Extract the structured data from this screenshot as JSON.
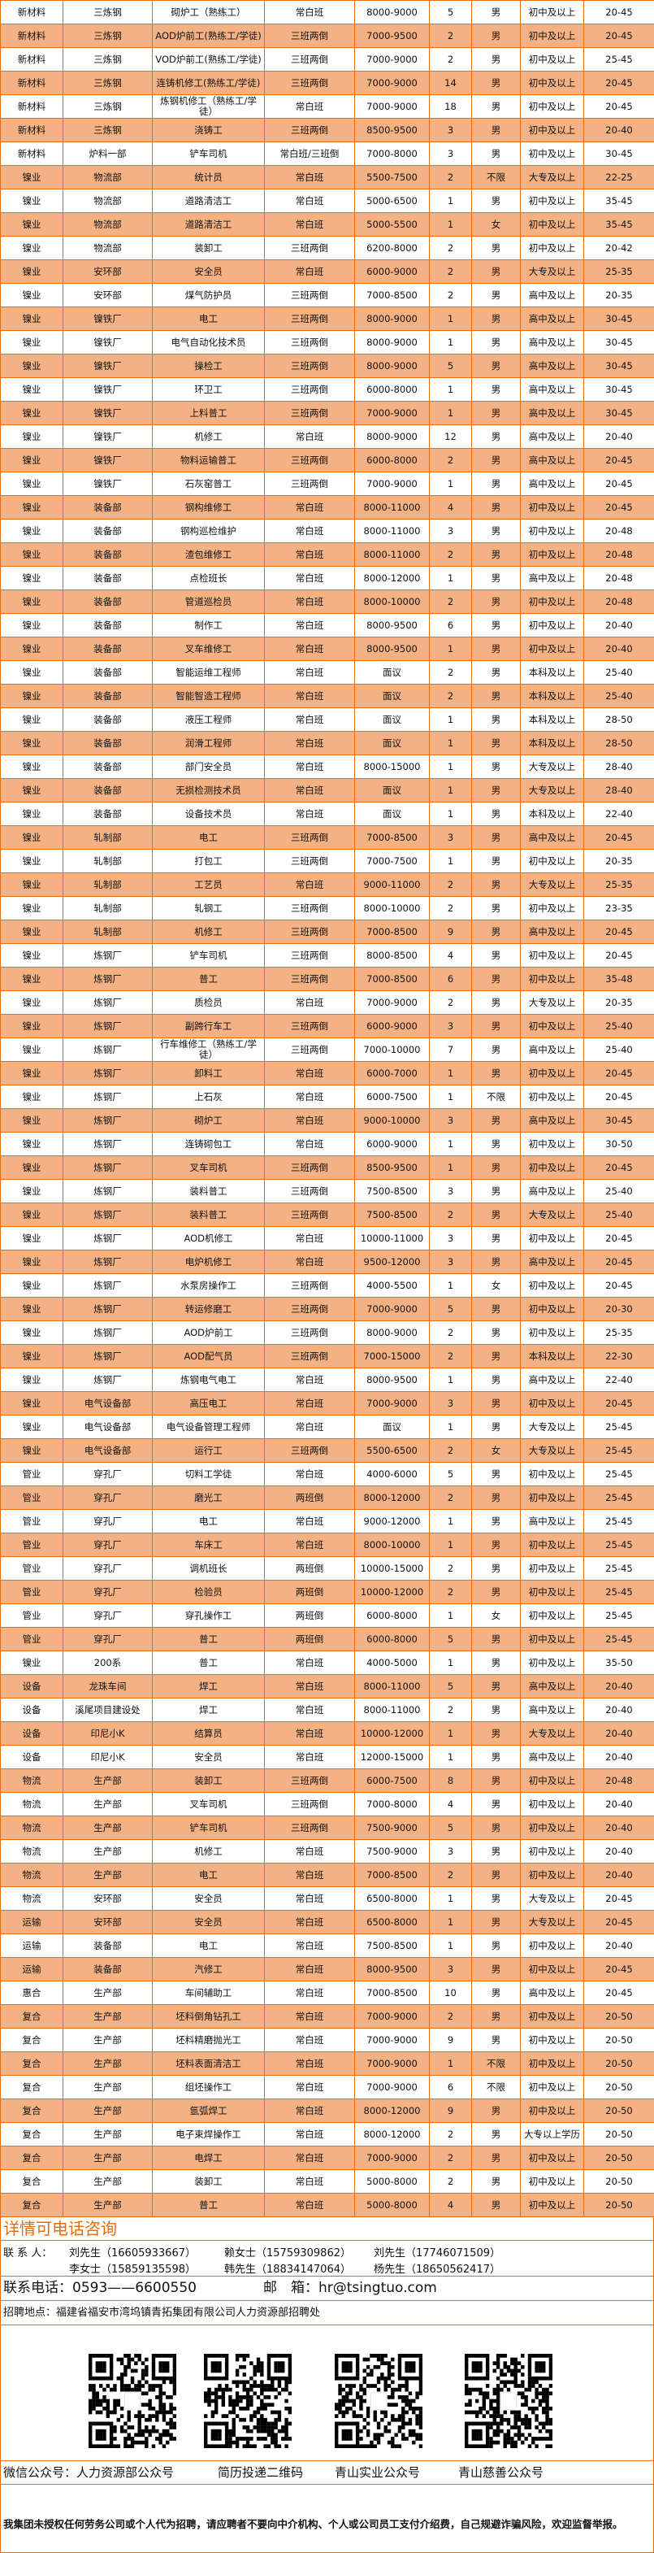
{
  "colors": {
    "stripe": "#F4B183",
    "border": "#E46C0A",
    "accent": "#E46C0A"
  },
  "rows": [
    [
      "新材料",
      "三炼钢",
      "砌炉工（熟练工）",
      "常白班",
      "8000-9000",
      "5",
      "男",
      "初中及以上",
      "20-45"
    ],
    [
      "新材料",
      "三炼钢",
      "AOD炉前工(熟练工/学徒)",
      "三班两倒",
      "7000-9500",
      "2",
      "男",
      "初中及以上",
      "20-45"
    ],
    [
      "新材料",
      "三炼钢",
      "VOD炉前工(熟练工/学徒)",
      "三班两倒",
      "7000-9000",
      "2",
      "男",
      "初中及以上",
      "25-45"
    ],
    [
      "新材料",
      "三炼钢",
      "连铸机修工(熟练工/学徒)",
      "三班两倒",
      "7000-9000",
      "14",
      "男",
      "初中及以上",
      "20-45"
    ],
    [
      "新材料",
      "三炼钢",
      "炼钢机修工（熟练工/学徒）",
      "常白班",
      "7000-9000",
      "18",
      "男",
      "初中及以上",
      "20-45"
    ],
    [
      "新材料",
      "三炼钢",
      "浇铸工",
      "三班两倒",
      "8500-9500",
      "3",
      "男",
      "初中及以上",
      "20-40"
    ],
    [
      "新材料",
      "炉料一部",
      "铲车司机",
      "常白班/三班倒",
      "7000-8000",
      "3",
      "男",
      "初中及以上",
      "30-45"
    ],
    [
      "镍业",
      "物流部",
      "统计员",
      "常白班",
      "5500-7500",
      "2",
      "不限",
      "大专及以上",
      "22-25"
    ],
    [
      "镍业",
      "物流部",
      "道路清洁工",
      "常白班",
      "5000-6500",
      "1",
      "男",
      "初中及以上",
      "35-45"
    ],
    [
      "镍业",
      "物流部",
      "道路清洁工",
      "常白班",
      "5000-5500",
      "1",
      "女",
      "初中及以上",
      "35-45"
    ],
    [
      "镍业",
      "物流部",
      "装卸工",
      "三班两倒",
      "6200-8000",
      "2",
      "男",
      "初中及以上",
      "20-42"
    ],
    [
      "镍业",
      "安环部",
      "安全员",
      "常白班",
      "6000-9000",
      "2",
      "男",
      "大专及以上",
      "25-35"
    ],
    [
      "镍业",
      "安环部",
      "煤气防护员",
      "三班两倒",
      "7000-8500",
      "2",
      "男",
      "高中及以上",
      "20-35"
    ],
    [
      "镍业",
      "镍铁厂",
      "电工",
      "三班两倒",
      "8000-9000",
      "1",
      "男",
      "高中及以上",
      "30-45"
    ],
    [
      "镍业",
      "镍铁厂",
      "电气自动化技术员",
      "三班两倒",
      "8000-9000",
      "1",
      "男",
      "高中及以上",
      "30-45"
    ],
    [
      "镍业",
      "镍铁厂",
      "操检工",
      "三班两倒",
      "8000-9000",
      "5",
      "男",
      "高中及以上",
      "30-45"
    ],
    [
      "镍业",
      "镍铁厂",
      "环卫工",
      "三班两倒",
      "6000-8000",
      "1",
      "男",
      "高中及以上",
      "30-45"
    ],
    [
      "镍业",
      "镍铁厂",
      "上料普工",
      "三班两倒",
      "7000-9000",
      "1",
      "男",
      "高中及以上",
      "30-45"
    ],
    [
      "镍业",
      "镍铁厂",
      "机修工",
      "常白班",
      "8000-9000",
      "12",
      "男",
      "高中及以上",
      "20-40"
    ],
    [
      "镍业",
      "镍铁厂",
      "物料运输普工",
      "三班两倒",
      "6000-8000",
      "2",
      "男",
      "高中及以上",
      "20-45"
    ],
    [
      "镍业",
      "镍铁厂",
      "石灰窑普工",
      "三班两倒",
      "7000-9000",
      "1",
      "男",
      "高中及以上",
      "20-45"
    ],
    [
      "镍业",
      "装备部",
      "钢构维修工",
      "常白班",
      "8000-11000",
      "4",
      "男",
      "初中及以上",
      "20-45"
    ],
    [
      "镍业",
      "装备部",
      "钢构巡检维护",
      "常白班",
      "8000-11000",
      "3",
      "男",
      "初中及以上",
      "20-48"
    ],
    [
      "镍业",
      "装备部",
      "渣包维修工",
      "常白班",
      "8000-11000",
      "2",
      "男",
      "初中及以上",
      "20-48"
    ],
    [
      "镍业",
      "装备部",
      "点检班长",
      "常白班",
      "8000-12000",
      "1",
      "男",
      "高中及以上",
      "20-48"
    ],
    [
      "镍业",
      "装备部",
      "管道巡检员",
      "常白班",
      "8000-10000",
      "2",
      "男",
      "初中及以上",
      "20-48"
    ],
    [
      "镍业",
      "装备部",
      "制作工",
      "常白班",
      "8000-9500",
      "6",
      "男",
      "初中及以上",
      "20-40"
    ],
    [
      "镍业",
      "装备部",
      "叉车维修工",
      "常白班",
      "8000-9500",
      "1",
      "男",
      "初中及以上",
      "20-40"
    ],
    [
      "镍业",
      "装备部",
      "智能运维工程师",
      "常白班",
      "面议",
      "2",
      "男",
      "本科及以上",
      "25-40"
    ],
    [
      "镍业",
      "装备部",
      "智能智造工程师",
      "常白班",
      "面议",
      "2",
      "男",
      "本科及以上",
      "25-40"
    ],
    [
      "镍业",
      "装备部",
      "液压工程师",
      "常白班",
      "面议",
      "1",
      "男",
      "本科及以上",
      "28-50"
    ],
    [
      "镍业",
      "装备部",
      "润滑工程师",
      "常白班",
      "面议",
      "1",
      "男",
      "本科及以上",
      "28-50"
    ],
    [
      "镍业",
      "装备部",
      "部门安全员",
      "常白班",
      "8000-15000",
      "1",
      "男",
      "大专及以上",
      "28-40"
    ],
    [
      "镍业",
      "装备部",
      "无损检测技术员",
      "常白班",
      "面议",
      "1",
      "男",
      "大专及以上",
      "28-40"
    ],
    [
      "镍业",
      "装备部",
      "设备技术员",
      "常白班",
      "面议",
      "1",
      "男",
      "本科及以上",
      "22-40"
    ],
    [
      "镍业",
      "轧制部",
      "电工",
      "三班两倒",
      "7000-8500",
      "3",
      "男",
      "高中及以上",
      "20-45"
    ],
    [
      "镍业",
      "轧制部",
      "打包工",
      "三班两倒",
      "7000-7500",
      "1",
      "男",
      "初中及以上",
      "20-35"
    ],
    [
      "镍业",
      "轧制部",
      "工艺员",
      "常白班",
      "9000-11000",
      "2",
      "男",
      "大专及以上",
      "25-35"
    ],
    [
      "镍业",
      "轧制部",
      "轧钢工",
      "三班两倒",
      "8000-10000",
      "2",
      "男",
      "初中及以上",
      "23-35"
    ],
    [
      "镍业",
      "轧制部",
      "机修工",
      "三班两倒",
      "7000-8500",
      "9",
      "男",
      "高中及以上",
      "20-45"
    ],
    [
      "镍业",
      "炼钢厂",
      "铲车司机",
      "三班两倒",
      "8000-8500",
      "4",
      "男",
      "初中及以上",
      "20-45"
    ],
    [
      "镍业",
      "炼钢厂",
      "普工",
      "三班两倒",
      "7000-8500",
      "6",
      "男",
      "初中及以上",
      "35-48"
    ],
    [
      "镍业",
      "炼钢厂",
      "质检员",
      "常白班",
      "7000-9000",
      "2",
      "男",
      "大专及以上",
      "20-35"
    ],
    [
      "镍业",
      "炼钢厂",
      "副跨行车工",
      "三班两倒",
      "6000-9000",
      "3",
      "男",
      "初中及以上",
      "25-40"
    ],
    [
      "镍业",
      "炼钢厂",
      "行车维修工（熟练工/学徒）",
      "三班两倒",
      "7000-10000",
      "7",
      "男",
      "高中及以上",
      "25-40"
    ],
    [
      "镍业",
      "炼钢厂",
      "卸料工",
      "常白班",
      "6000-7000",
      "1",
      "男",
      "初中及以上",
      "20-45"
    ],
    [
      "镍业",
      "炼钢厂",
      "上石灰",
      "常白班",
      "6000-7500",
      "1",
      "不限",
      "初中及以上",
      "20-45"
    ],
    [
      "镍业",
      "炼钢厂",
      "砌炉工",
      "常白班",
      "9000-10000",
      "3",
      "男",
      "高中及以上",
      "30-45"
    ],
    [
      "镍业",
      "炼钢厂",
      "连铸砌包工",
      "常白班",
      "6000-9000",
      "1",
      "男",
      "初中及以上",
      "30-50"
    ],
    [
      "镍业",
      "炼钢厂",
      "叉车司机",
      "三班两倒",
      "8500-9500",
      "1",
      "男",
      "初中及以上",
      "20-45"
    ],
    [
      "镍业",
      "炼钢厂",
      "装料普工",
      "三班两倒",
      "7500-8500",
      "3",
      "男",
      "高中及以上",
      "25-40"
    ],
    [
      "镍业",
      "炼钢厂",
      "装料普工",
      "三班两倒",
      "7500-8500",
      "2",
      "男",
      "大专及以上",
      "25-40"
    ],
    [
      "镍业",
      "炼钢厂",
      "AOD机修工",
      "常白班",
      "10000-11000",
      "3",
      "男",
      "初中及以上",
      "20-45"
    ],
    [
      "镍业",
      "炼钢厂",
      "电炉机修工",
      "常白班",
      "9500-12000",
      "3",
      "男",
      "高中及以上",
      "20-45"
    ],
    [
      "镍业",
      "炼钢厂",
      "水泵房操作工",
      "三班两倒",
      "4000-5500",
      "1",
      "女",
      "初中及以上",
      "20-45"
    ],
    [
      "镍业",
      "炼钢厂",
      "转运修磨工",
      "三班两倒",
      "7000-9000",
      "5",
      "男",
      "初中及以上",
      "20-30"
    ],
    [
      "镍业",
      "炼钢厂",
      "AOD炉前工",
      "三班两倒",
      "8000-9000",
      "2",
      "男",
      "初中及以上",
      "25-35"
    ],
    [
      "镍业",
      "炼钢厂",
      "AOD配气员",
      "三班两倒",
      "7000-15000",
      "2",
      "男",
      "本科及以上",
      "22-30"
    ],
    [
      "镍业",
      "炼钢厂",
      "炼钢电气电工",
      "常白班",
      "8000-9500",
      "1",
      "男",
      "高中及以上",
      "22-40"
    ],
    [
      "镍业",
      "电气设备部",
      "高压电工",
      "常白班",
      "7000-9000",
      "3",
      "男",
      "初中及以上",
      "20-45"
    ],
    [
      "镍业",
      "电气设备部",
      "电气设备管理工程师",
      "常白班",
      "面议",
      "1",
      "男",
      "大专及以上",
      "25-45"
    ],
    [
      "镍业",
      "电气设备部",
      "运行工",
      "三班两倒",
      "5500-6500",
      "2",
      "女",
      "大专及以上",
      "25-45"
    ],
    [
      "管业",
      "穿孔厂",
      "切料工学徒",
      "常白班",
      "4000-6000",
      "5",
      "男",
      "初中及以上",
      "25-45"
    ],
    [
      "管业",
      "穿孔厂",
      "磨光工",
      "两班倒",
      "8000-12000",
      "2",
      "男",
      "初中及以上",
      "25-45"
    ],
    [
      "管业",
      "穿孔厂",
      "电工",
      "常白班",
      "9000-12000",
      "1",
      "男",
      "高中及以上",
      "25-45"
    ],
    [
      "管业",
      "穿孔厂",
      "车床工",
      "常白班",
      "8000-10000",
      "1",
      "男",
      "初中及以上",
      "25-45"
    ],
    [
      "管业",
      "穿孔厂",
      "调机班长",
      "两班倒",
      "10000-15000",
      "2",
      "男",
      "初中及以上",
      "25-45"
    ],
    [
      "管业",
      "穿孔厂",
      "检验员",
      "两班倒",
      "10000-12000",
      "2",
      "男",
      "初中及以上",
      "25-45"
    ],
    [
      "管业",
      "穿孔厂",
      "穿孔操作工",
      "两班倒",
      "6000-8000",
      "1",
      "女",
      "初中及以上",
      "25-45"
    ],
    [
      "管业",
      "穿孔厂",
      "普工",
      "两班倒",
      "6000-8000",
      "5",
      "男",
      "初中及以上",
      "25-45"
    ],
    [
      "镍业",
      "200系",
      "普工",
      "常白班",
      "4000-5000",
      "1",
      "男",
      "初中及以上",
      "35-50"
    ],
    [
      "设备",
      "龙珠车间",
      "焊工",
      "常白班",
      "8000-11000",
      "5",
      "男",
      "高中及以上",
      "20-40"
    ],
    [
      "设备",
      "溪尾项目建设处",
      "焊工",
      "常白班",
      "8000-11000",
      "2",
      "男",
      "高中及以上",
      "20-40"
    ],
    [
      "设备",
      "印尼小K",
      "结算员",
      "常白班",
      "10000-12000",
      "1",
      "男",
      "大专及以上",
      "20-40"
    ],
    [
      "设备",
      "印尼小K",
      "安全员",
      "常白班",
      "12000-15000",
      "1",
      "男",
      "高中及以上",
      "20-40"
    ],
    [
      "物流",
      "生产部",
      "装卸工",
      "三班两倒",
      "6000-7500",
      "8",
      "男",
      "初中及以上",
      "20-48"
    ],
    [
      "物流",
      "生产部",
      "叉车司机",
      "三班两倒",
      "7000-8000",
      "4",
      "男",
      "初中及以上",
      "20-40"
    ],
    [
      "物流",
      "生产部",
      "铲车司机",
      "三班两倒",
      "7500-9000",
      "5",
      "男",
      "初中及以上",
      "20-40"
    ],
    [
      "物流",
      "生产部",
      "机修工",
      "常白班",
      "7500-9000",
      "3",
      "男",
      "初中及以上",
      "20-40"
    ],
    [
      "物流",
      "生产部",
      "电工",
      "常白班",
      "7000-8500",
      "2",
      "男",
      "初中及以上",
      "20-40"
    ],
    [
      "物流",
      "安环部",
      "安全员",
      "常白班",
      "6500-8000",
      "1",
      "男",
      "大专及以上",
      "20-45"
    ],
    [
      "运输",
      "安环部",
      "安全员",
      "常白班",
      "6500-8000",
      "1",
      "男",
      "大专及以上",
      "20-45"
    ],
    [
      "运输",
      "装备部",
      "电工",
      "常白班",
      "7500-8500",
      "1",
      "男",
      "初中及以上",
      "20-40"
    ],
    [
      "运输",
      "装备部",
      "汽修工",
      "常白班",
      "8000-9500",
      "3",
      "男",
      "初中及以上",
      "20-45"
    ],
    [
      "惠合",
      "生产部",
      "车间辅助工",
      "常白班",
      "7000-8500",
      "10",
      "男",
      "高中及以上",
      "20-45"
    ],
    [
      "复合",
      "生产部",
      "坯料倒角钻孔工",
      "常白班",
      "7000-9000",
      "2",
      "男",
      "初中及以上",
      "20-50"
    ],
    [
      "复合",
      "生产部",
      "坯料精磨抛光工",
      "常白班",
      "7000-9000",
      "9",
      "男",
      "初中及以上",
      "20-50"
    ],
    [
      "复合",
      "生产部",
      "坯料表面清洁工",
      "常白班",
      "7000-9000",
      "1",
      "不限",
      "初中及以上",
      "20-50"
    ],
    [
      "复合",
      "生产部",
      "组坯操作工",
      "常白班",
      "7000-9000",
      "6",
      "不限",
      "初中及以上",
      "20-50"
    ],
    [
      "复合",
      "生产部",
      "氩弧焊工",
      "常白班",
      "8000-12000",
      "9",
      "男",
      "初中及以上",
      "20-50"
    ],
    [
      "复合",
      "生产部",
      "电子束焊操作工",
      "常白班",
      "8000-12000",
      "2",
      "男",
      "大专以上学历",
      "20-50"
    ],
    [
      "复合",
      "生产部",
      "电焊工",
      "常白班",
      "7000-9000",
      "2",
      "男",
      "初中及以上",
      "20-50"
    ],
    [
      "复合",
      "生产部",
      "装卸工",
      "常白班",
      "5000-8000",
      "2",
      "男",
      "初中及以上",
      "20-50"
    ],
    [
      "复合",
      "生产部",
      "普工",
      "常白班",
      "5000-8000",
      "4",
      "男",
      "初中及以上",
      "20-50"
    ]
  ],
  "footer": {
    "consult": "详情可电话咨询",
    "contacts_label": "联 系 人：",
    "contacts": [
      "刘先生（16605933667）",
      "赖女士（15759309862）",
      "刘先生（17746071509）",
      "李女士（15859135598）",
      "韩先生（18834147064）",
      "杨先生（18650562417）"
    ],
    "phone": "联系电话：0593——6600550",
    "email": "邮　箱：hr@tsingtuo.com",
    "address": "招聘地点：福建省福安市湾坞镇青拓集团有限公司人力资源部招聘处",
    "qr_labels": [
      "微信公众号：人力资源部公众号",
      "简历投递二维码",
      "青山实业公众号",
      "青山慈善公众号"
    ],
    "disclaimer": "我集团未授权任何劳务公司或个人代为招聘，请应聘者不要向中介机构、个人或公司员工支付介绍费，自己规避诈骗风险，欢迎监督举报。"
  }
}
